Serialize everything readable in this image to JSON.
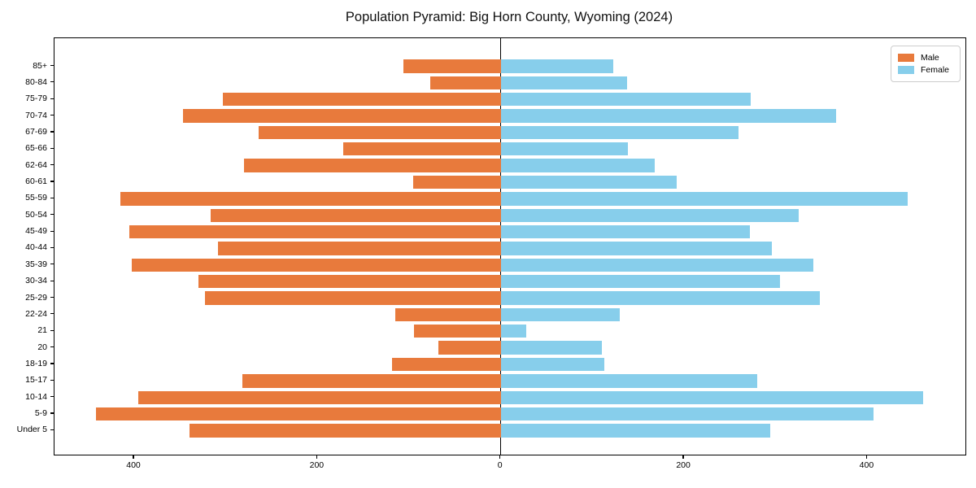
{
  "title": "Population Pyramid: Big Horn County, Wyoming (2024)",
  "legend": {
    "male_label": "Male",
    "female_label": "Female"
  },
  "colors": {
    "male": "#e87a3c",
    "female": "#87ceeb",
    "axis": "#000000"
  },
  "chart_data": {
    "type": "bar",
    "subtype": "population-pyramid",
    "orientation": "horizontal",
    "title": "Population Pyramid: Big Horn County, Wyoming (2024)",
    "categories_top_to_bottom": [
      "85+",
      "80-84",
      "75-79",
      "70-74",
      "67-69",
      "65-66",
      "62-64",
      "60-61",
      "55-59",
      "50-54",
      "45-49",
      "40-44",
      "35-39",
      "30-34",
      "25-29",
      "22-24",
      "21",
      "20",
      "18-19",
      "15-17",
      "10-14",
      "5-9",
      "Under 5"
    ],
    "series": [
      {
        "name": "Male",
        "side": "left",
        "color": "#e87a3c",
        "values": [
          106,
          77,
          303,
          347,
          264,
          172,
          280,
          96,
          415,
          317,
          405,
          309,
          403,
          330,
          323,
          115,
          95,
          68,
          119,
          282,
          396,
          442,
          340
        ]
      },
      {
        "name": "Female",
        "side": "right",
        "color": "#87ceeb",
        "values": [
          123,
          138,
          273,
          366,
          259,
          139,
          168,
          192,
          444,
          325,
          272,
          296,
          341,
          305,
          348,
          130,
          28,
          110,
          113,
          280,
          461,
          407,
          294
        ]
      }
    ],
    "x_ticks": [
      -400,
      -200,
      0,
      200,
      400
    ],
    "x_tick_labels": [
      "400",
      "200",
      "0",
      "200",
      "400"
    ],
    "xlim": [
      -487,
      507
    ],
    "xlabel": "",
    "ylabel": "",
    "grid": false,
    "legend_position": "upper right",
    "legend_entries": [
      "Male",
      "Female"
    ]
  }
}
